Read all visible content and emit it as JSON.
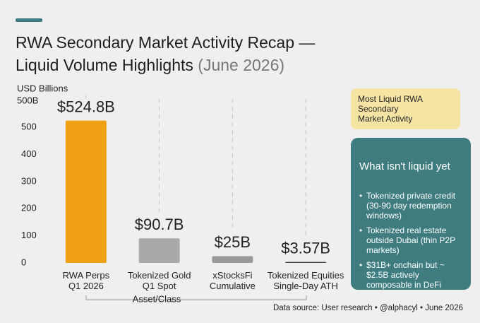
{
  "chart_data": {
    "type": "bar",
    "title": "RWA Secondary Market Activity Recap —\nLiquid Volume Highlights",
    "subtitle": "(June 2026)",
    "y_label": "USD Billions",
    "axis_top_label": "500B",
    "x_label": "Asset/Class",
    "categories": [
      "RWA Perps\nQ1 2026",
      "Tokenized Gold\nQ1 Spot",
      "xStocksFi\nCumulative",
      "Tokenized Equities\nSingle-Day ATH"
    ],
    "values": [
      524.8,
      90.7,
      25,
      3.57
    ],
    "value_labels": [
      "$524.8B",
      "$90.7B",
      "$25B",
      "$3.57B"
    ],
    "colors": [
      "#f0a015",
      "#a9a9a9",
      "#9a9a9a",
      "#3a3a3a"
    ],
    "ylim": [
      0,
      550
    ],
    "yticks": [
      0,
      100,
      200,
      300,
      400,
      500
    ],
    "callout": "Most Liquid RWA\nSecondary\nMarket Activity",
    "notes": {
      "title": "What isn't liquid yet",
      "items": [
        "Tokenized private credit (30-90 day redemption windows)",
        "Tokenized real estate outside Dubai (thin P2P markets)",
        "$31B+ onchain but ~ $2.5B actively composable in DeFi"
      ]
    },
    "source": "Data source: User research • @alphacyl • June 2026"
  }
}
